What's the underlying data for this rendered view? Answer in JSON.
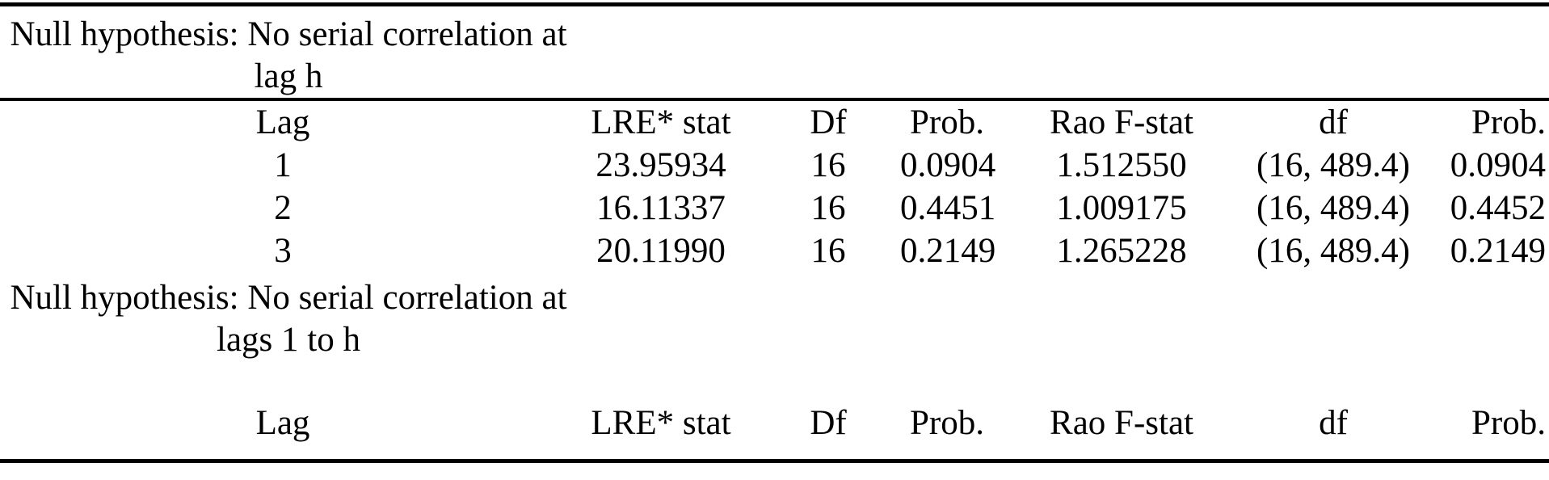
{
  "theme": {
    "text_color": "#000000",
    "background_color": "#ffffff",
    "rule_color": "#000000"
  },
  "columns": [
    "Lag",
    "LRE* stat",
    "Df",
    "Prob.",
    "Rao F-stat",
    "df",
    "Prob."
  ],
  "section_lag_h": {
    "title": "Null hypothesis: No serial correlation at lag h",
    "title_lines": [
      "Null hypothesis: No serial correlation at",
      "lag h"
    ],
    "rows": [
      [
        "1",
        "23.95934",
        "16",
        "0.0904",
        "1.512550",
        "(16, 489.4)",
        "0.0904"
      ],
      [
        "2",
        "16.11337",
        "16",
        "0.4451",
        "1.009175",
        "(16, 489.4)",
        "0.4452"
      ],
      [
        "3",
        "20.11990",
        "16",
        "0.2149",
        "1.265228",
        "(16, 489.4)",
        "0.2149"
      ]
    ]
  },
  "section_lags_1_to_h": {
    "title": "Null hypothesis: No serial correlation at lags 1 to h",
    "title_lines": [
      "Null hypothesis: No serial correlation at",
      "lags 1 to h"
    ],
    "rows": []
  }
}
